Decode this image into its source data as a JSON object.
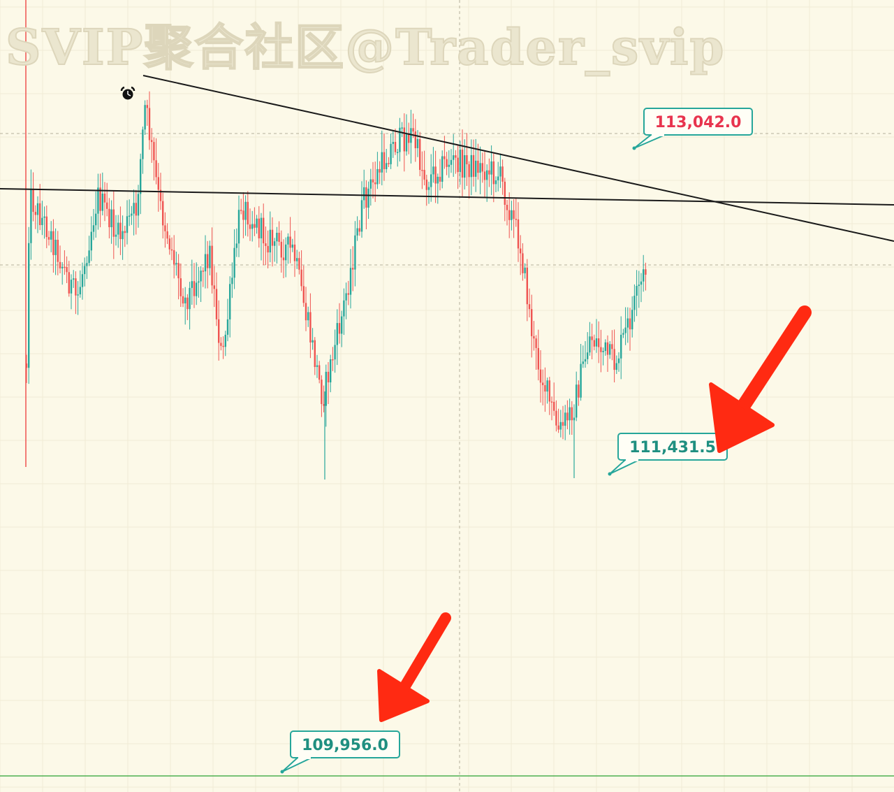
{
  "watermark": "SVIP聚合社区@Trader_svip",
  "chart_data": {
    "type": "candlestick",
    "title": "",
    "xlabel": "",
    "ylabel": "",
    "grid": true,
    "colors": {
      "background": "#fcf9e8",
      "up": "#26a69a",
      "down": "#ef5350",
      "trendline": "#1a1a1a",
      "support_line": "#4caf50",
      "label_border": "#26a69a",
      "label_high_text": "#e8344e",
      "label_low_text": "#1f8f80",
      "arrow": "#ff2a12"
    },
    "price_labels": [
      {
        "name": "high-label",
        "text": "113,042.0",
        "price": 113042.0,
        "style": "high"
      },
      {
        "name": "mid-low-label",
        "text": "111,431.5",
        "price": 111431.5,
        "style": "low"
      },
      {
        "name": "target-label",
        "text": "109,956.0",
        "price": 109956.0,
        "style": "low"
      }
    ],
    "support_level": 109956.0,
    "annotations": [
      {
        "type": "arrow",
        "points_to": "111,431.5"
      },
      {
        "type": "arrow",
        "points_to": "109,956.0"
      },
      {
        "type": "alarm-icon"
      }
    ]
  }
}
